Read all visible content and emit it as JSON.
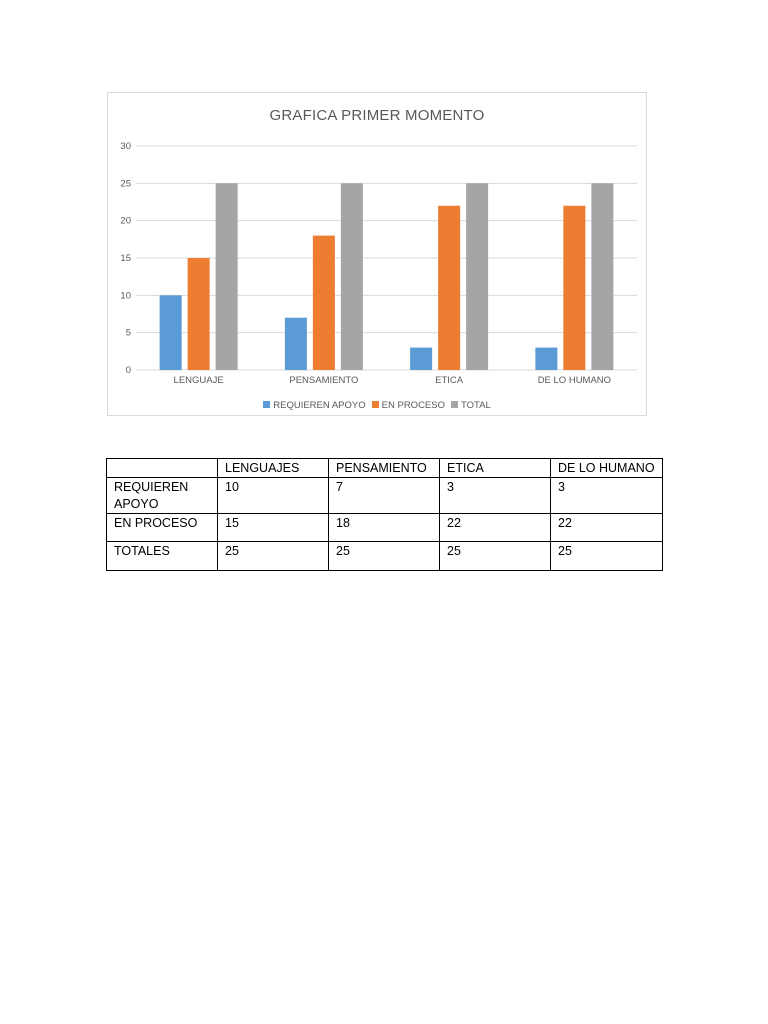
{
  "chart_data": {
    "type": "bar",
    "title": "GRAFICA PRIMER MOMENTO",
    "categories": [
      "LENGUAJE",
      "PENSAMIENTO",
      "ETICA",
      "DE LO HUMANO"
    ],
    "series": [
      {
        "name": "REQUIEREN APOYO",
        "values": [
          10,
          7,
          3,
          3
        ],
        "color": "#5b9bd5"
      },
      {
        "name": "EN PROCESO",
        "values": [
          15,
          18,
          22,
          22
        ],
        "color": "#ed7d31"
      },
      {
        "name": "TOTAL",
        "values": [
          25,
          25,
          25,
          25
        ],
        "color": "#a5a5a5"
      }
    ],
    "ylim": [
      0,
      30
    ],
    "yticks": [
      0,
      5,
      10,
      15,
      20,
      25,
      30
    ],
    "grid": true,
    "legend": "bottom"
  },
  "table": {
    "header": [
      "",
      "LENGUAJES",
      "PENSAMIENTO",
      "ETICA",
      "DE LO HUMANO"
    ],
    "rows": [
      [
        "REQUIEREN APOYO",
        "10",
        "7",
        "3",
        "3"
      ],
      [
        "EN PROCESO",
        "15",
        "18",
        "22",
        "22"
      ],
      [
        "TOTALES",
        "25",
        "25",
        "25",
        "25"
      ]
    ]
  }
}
